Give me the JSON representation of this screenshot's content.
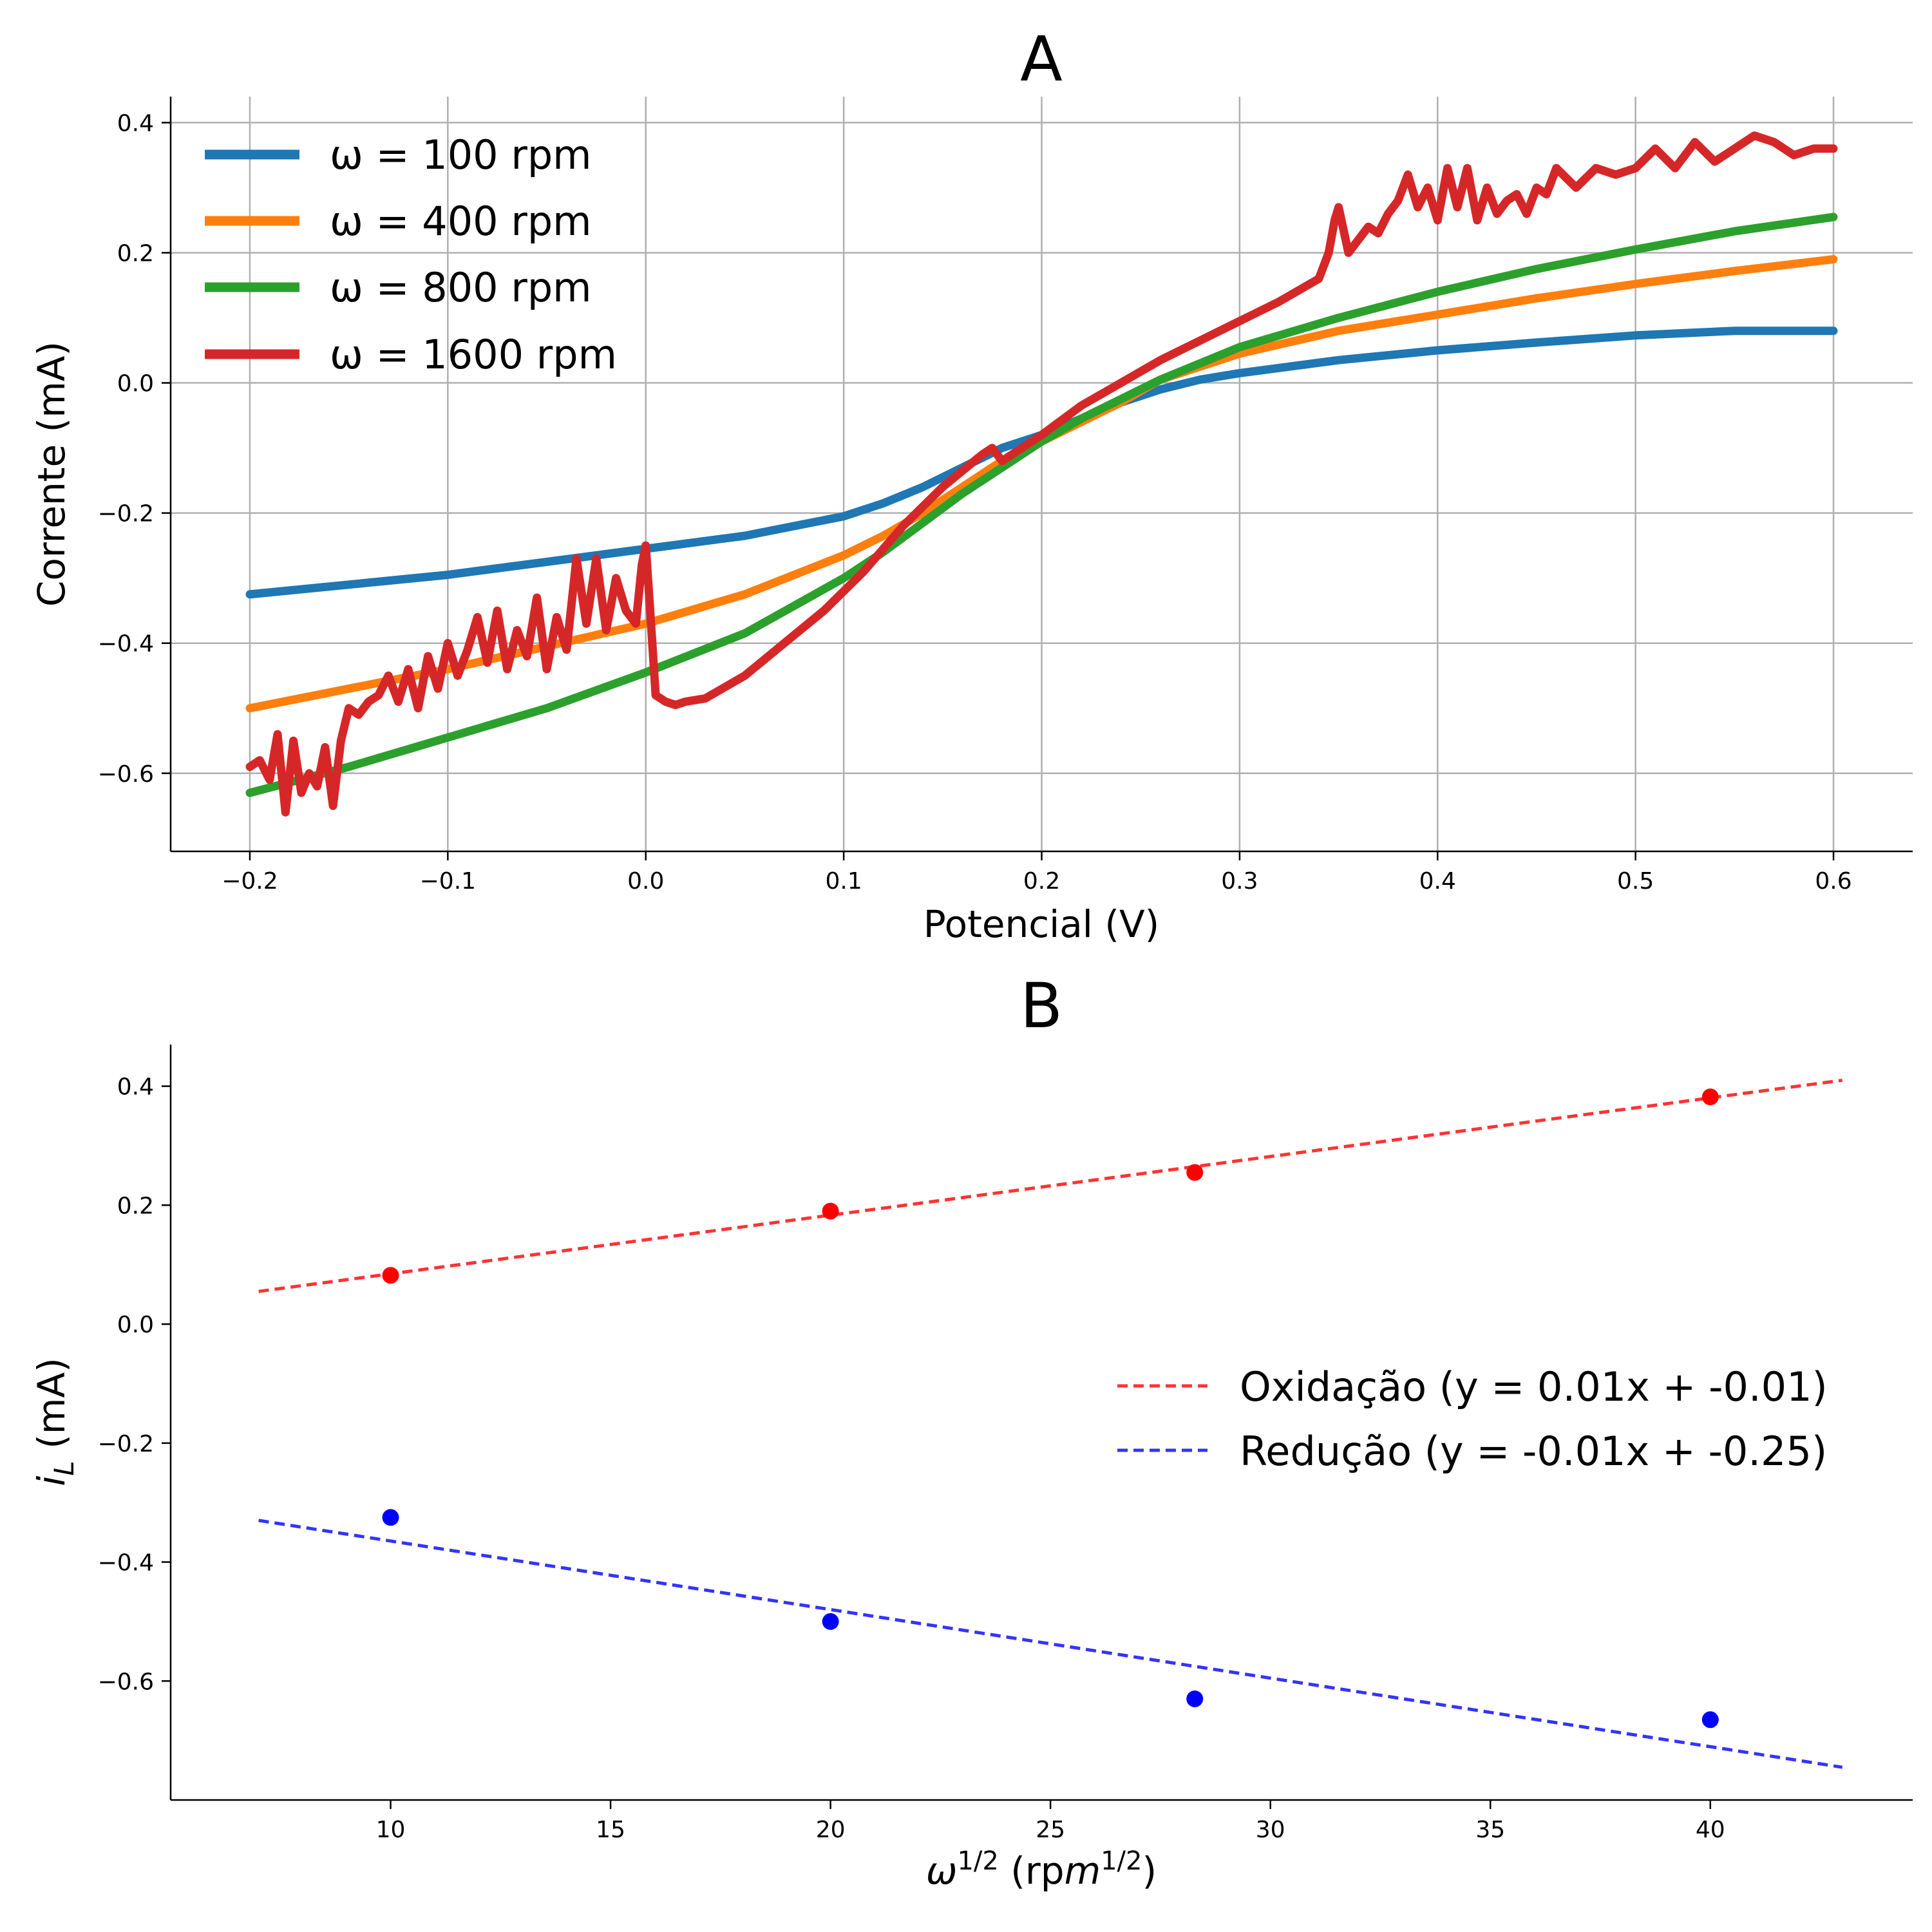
{
  "chart_data": [
    {
      "panel": "A",
      "type": "line",
      "title": "A",
      "xlabel": "Potencial (V)",
      "ylabel": "Corrente (mA)",
      "xlim": [
        -0.24,
        0.64
      ],
      "ylim": [
        -0.72,
        0.44
      ],
      "xticks": [
        -0.2,
        -0.1,
        0.0,
        0.1,
        0.2,
        0.3,
        0.4,
        0.5,
        0.6
      ],
      "xtick_labels": [
        "−0.2",
        "−0.1",
        "0.0",
        "0.1",
        "0.2",
        "0.3",
        "0.4",
        "0.5",
        "0.6"
      ],
      "yticks": [
        0.4,
        0.2,
        0.0,
        -0.2,
        -0.4,
        -0.6
      ],
      "ytick_labels": [
        "0.4",
        "0.2",
        "0.0",
        "−0.2",
        "−0.4",
        "−0.6"
      ],
      "grid": true,
      "legend_position": "top-left",
      "series": [
        {
          "name": "ω = 100 rpm",
          "color": "#1f77b4",
          "x": [
            -0.2,
            -0.15,
            -0.1,
            -0.05,
            0.0,
            0.05,
            0.1,
            0.12,
            0.14,
            0.16,
            0.18,
            0.2,
            0.22,
            0.24,
            0.26,
            0.28,
            0.3,
            0.35,
            0.4,
            0.45,
            0.5,
            0.55,
            0.6
          ],
          "y": [
            -0.325,
            -0.31,
            -0.295,
            -0.275,
            -0.255,
            -0.235,
            -0.205,
            -0.185,
            -0.16,
            -0.13,
            -0.1,
            -0.08,
            -0.055,
            -0.03,
            -0.01,
            0.005,
            0.015,
            0.035,
            0.05,
            0.062,
            0.073,
            0.08,
            0.08
          ]
        },
        {
          "name": "ω = 400 rpm",
          "color": "#ff7f0e",
          "x": [
            -0.2,
            -0.15,
            -0.1,
            -0.05,
            0.0,
            0.05,
            0.1,
            0.12,
            0.14,
            0.16,
            0.18,
            0.2,
            0.22,
            0.24,
            0.26,
            0.28,
            0.3,
            0.35,
            0.4,
            0.45,
            0.5,
            0.55,
            0.6
          ],
          "y": [
            -0.5,
            -0.47,
            -0.44,
            -0.405,
            -0.37,
            -0.325,
            -0.265,
            -0.235,
            -0.2,
            -0.16,
            -0.12,
            -0.09,
            -0.06,
            -0.03,
            0.005,
            0.025,
            0.045,
            0.08,
            0.105,
            0.13,
            0.152,
            0.172,
            0.19
          ]
        },
        {
          "name": "ω = 800 rpm",
          "color": "#2ca02c",
          "x": [
            -0.2,
            -0.15,
            -0.1,
            -0.05,
            0.0,
            0.05,
            0.1,
            0.12,
            0.14,
            0.16,
            0.18,
            0.2,
            0.22,
            0.24,
            0.26,
            0.28,
            0.3,
            0.35,
            0.4,
            0.45,
            0.5,
            0.55,
            0.6
          ],
          "y": [
            -0.63,
            -0.59,
            -0.545,
            -0.5,
            -0.445,
            -0.385,
            -0.3,
            -0.26,
            -0.215,
            -0.17,
            -0.13,
            -0.09,
            -0.055,
            -0.025,
            0.005,
            0.03,
            0.055,
            0.1,
            0.14,
            0.175,
            0.205,
            0.233,
            0.255
          ]
        },
        {
          "name": "ω = 1600 rpm",
          "color": "#d62728",
          "x": [
            -0.2,
            -0.195,
            -0.19,
            -0.186,
            -0.182,
            -0.178,
            -0.174,
            -0.17,
            -0.166,
            -0.162,
            -0.158,
            -0.154,
            -0.15,
            -0.145,
            -0.14,
            -0.135,
            -0.13,
            -0.125,
            -0.12,
            -0.115,
            -0.11,
            -0.105,
            -0.1,
            -0.095,
            -0.09,
            -0.085,
            -0.08,
            -0.075,
            -0.07,
            -0.065,
            -0.06,
            -0.055,
            -0.05,
            -0.045,
            -0.04,
            -0.035,
            -0.03,
            -0.025,
            -0.02,
            -0.015,
            -0.01,
            -0.005,
            -0.002,
            0.0,
            0.002,
            0.005,
            0.01,
            0.015,
            0.02,
            0.03,
            0.05,
            0.07,
            0.09,
            0.11,
            0.13,
            0.15,
            0.17,
            0.175,
            0.18,
            0.2,
            0.22,
            0.24,
            0.26,
            0.28,
            0.3,
            0.32,
            0.34,
            0.345,
            0.348,
            0.35,
            0.355,
            0.36,
            0.365,
            0.37,
            0.375,
            0.38,
            0.385,
            0.39,
            0.395,
            0.4,
            0.405,
            0.41,
            0.415,
            0.42,
            0.425,
            0.43,
            0.435,
            0.44,
            0.445,
            0.45,
            0.455,
            0.46,
            0.47,
            0.48,
            0.49,
            0.5,
            0.51,
            0.52,
            0.53,
            0.54,
            0.55,
            0.56,
            0.57,
            0.58,
            0.59,
            0.6
          ],
          "y": [
            -0.59,
            -0.58,
            -0.61,
            -0.54,
            -0.66,
            -0.55,
            -0.63,
            -0.6,
            -0.62,
            -0.56,
            -0.65,
            -0.55,
            -0.5,
            -0.51,
            -0.49,
            -0.48,
            -0.45,
            -0.49,
            -0.44,
            -0.5,
            -0.42,
            -0.47,
            -0.4,
            -0.45,
            -0.41,
            -0.36,
            -0.43,
            -0.35,
            -0.44,
            -0.38,
            -0.42,
            -0.33,
            -0.44,
            -0.36,
            -0.41,
            -0.27,
            -0.37,
            -0.27,
            -0.38,
            -0.3,
            -0.35,
            -0.37,
            -0.28,
            -0.25,
            -0.34,
            -0.48,
            -0.49,
            -0.495,
            -0.49,
            -0.485,
            -0.45,
            -0.4,
            -0.35,
            -0.29,
            -0.22,
            -0.16,
            -0.11,
            -0.1,
            -0.12,
            -0.08,
            -0.035,
            0.0,
            0.035,
            0.065,
            0.095,
            0.125,
            0.16,
            0.2,
            0.25,
            0.27,
            0.2,
            0.22,
            0.24,
            0.23,
            0.26,
            0.28,
            0.32,
            0.27,
            0.3,
            0.25,
            0.33,
            0.27,
            0.33,
            0.25,
            0.3,
            0.26,
            0.28,
            0.29,
            0.26,
            0.3,
            0.29,
            0.33,
            0.3,
            0.33,
            0.32,
            0.33,
            0.36,
            0.33,
            0.37,
            0.34,
            0.36,
            0.38,
            0.37,
            0.35,
            0.36,
            0.36
          ]
        }
      ]
    },
    {
      "panel": "B",
      "type": "scatter",
      "title": "B",
      "xlabel": "ω^1/2 (rpm^1/2)",
      "ylabel": "i_L (mA)",
      "xlim": [
        5.0,
        44.6
      ],
      "ylim": [
        -0.8,
        0.47
      ],
      "xticks": [
        10,
        15,
        20,
        25,
        30,
        35,
        40
      ],
      "xtick_labels": [
        "10",
        "15",
        "20",
        "25",
        "30",
        "35",
        "40"
      ],
      "yticks": [
        0.4,
        0.2,
        0.0,
        -0.2,
        -0.4,
        -0.6
      ],
      "ytick_labels": [
        "0.4",
        "0.2",
        "0.0",
        "−0.2",
        "−0.4",
        "−0.6"
      ],
      "grid": false,
      "legend_position": "center-right",
      "points": [
        {
          "name": "oxidacao",
          "color": "#ff0000",
          "x": [
            10.0,
            20.0,
            28.28,
            40.0
          ],
          "y": [
            0.082,
            0.19,
            0.255,
            0.382
          ]
        },
        {
          "name": "reducao",
          "color": "#0000ff",
          "x": [
            10.0,
            20.0,
            28.28,
            40.0
          ],
          "y": [
            -0.325,
            -0.5,
            -0.63,
            -0.665
          ]
        }
      ],
      "fits": [
        {
          "name": "Oxidação (y = 0.01x + -0.01)",
          "color": "#ff3333",
          "x": [
            7.0,
            43.0
          ],
          "y": [
            0.055,
            0.41
          ]
        },
        {
          "name": "Redução (y = -0.01x + -0.25)",
          "color": "#3333ff",
          "x": [
            7.0,
            43.0
          ],
          "y": [
            -0.33,
            -0.745
          ]
        }
      ]
    }
  ]
}
